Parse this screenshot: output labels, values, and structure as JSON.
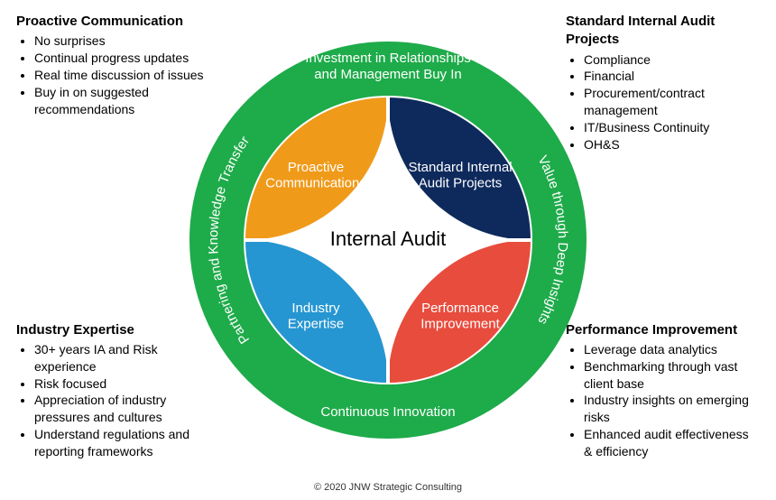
{
  "center_label": "Internal Audit",
  "ring_color": "#1eab4a",
  "ring_text_color": "#ffffff",
  "ring_labels": {
    "top": "Investment in Relationships and Management Buy In",
    "right": "Value through Deep Insights",
    "bottom": "Continuous Innovation",
    "left": "Partnering and Knowledge Transfer"
  },
  "quadrants": {
    "top_left": {
      "label": "Proactive Communications",
      "fill": "#f09a1a",
      "text": "#ffffff"
    },
    "top_right": {
      "label": "Standard Internal Audit Projects",
      "fill": "#0e2a5c",
      "text": "#ffffff"
    },
    "bottom_left": {
      "label": "Industry Expertise",
      "fill": "#2596d1",
      "text": "#ffffff"
    },
    "bottom_right": {
      "label": "Performance Improvement",
      "fill": "#e84c3d",
      "text": "#ffffff"
    }
  },
  "corners": {
    "top_left": {
      "title": "Proactive Communication",
      "items": [
        "No surprises",
        "Continual progress updates",
        "Real time discussion of issues",
        "Buy in on suggested recommendations"
      ]
    },
    "top_right": {
      "title": "Standard Internal Audit Projects",
      "items": [
        "Compliance",
        "Financial",
        "Procurement/contract management",
        "IT/Business Continuity",
        "OH&S"
      ]
    },
    "bottom_left": {
      "title": "Industry Expertise",
      "items": [
        "30+ years IA and Risk experience",
        "Risk focused",
        "Appreciation of industry pressures and cultures",
        "Understand regulations and reporting frameworks"
      ]
    },
    "bottom_right": {
      "title": "Performance Improvement",
      "items": [
        "Leverage data analytics",
        "Benchmarking through vast client base",
        "Industry insights on emerging risks",
        "Enhanced audit effectiveness & efficiency"
      ]
    }
  },
  "copyright": "© 2020 JNW Strategic Consulting",
  "diagram": {
    "outer_radius": 220,
    "inner_radius": 158,
    "petal_curve": 90,
    "center_font_size": 22,
    "ring_font_size": 15,
    "quadrant_font_size": 15
  }
}
